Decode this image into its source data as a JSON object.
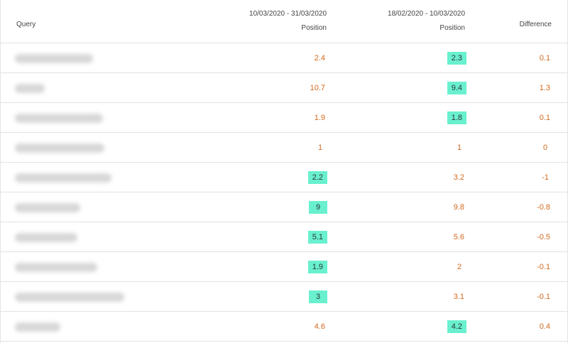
{
  "header": {
    "query_label": "Query",
    "range_current": "10/03/2020 - 31/03/2020",
    "range_previous": "18/02/2020 - 10/03/2020",
    "position_label": "Position",
    "difference_label": "Difference"
  },
  "colors": {
    "value_text": "#d26a1e",
    "highlight_bg": "#69f0cf"
  },
  "rows": [
    {
      "current": "2.4",
      "previous": "2.3",
      "difference": "0.1",
      "highlight": "previous"
    },
    {
      "current": "10.7",
      "previous": "9.4",
      "difference": "1.3",
      "highlight": "previous"
    },
    {
      "current": "1.9",
      "previous": "1.8",
      "difference": "0.1",
      "highlight": "previous"
    },
    {
      "current": "1",
      "previous": "1",
      "difference": "0",
      "highlight": "none"
    },
    {
      "current": "2.2",
      "previous": "3.2",
      "difference": "-1",
      "highlight": "current"
    },
    {
      "current": "9",
      "previous": "9.8",
      "difference": "-0.8",
      "highlight": "current"
    },
    {
      "current": "5.1",
      "previous": "5.6",
      "difference": "-0.5",
      "highlight": "current"
    },
    {
      "current": "1.9",
      "previous": "2",
      "difference": "-0.1",
      "highlight": "current"
    },
    {
      "current": "3",
      "previous": "3.1",
      "difference": "-0.1",
      "highlight": "current"
    },
    {
      "current": "4.6",
      "previous": "4.2",
      "difference": "0.4",
      "highlight": "previous"
    }
  ]
}
